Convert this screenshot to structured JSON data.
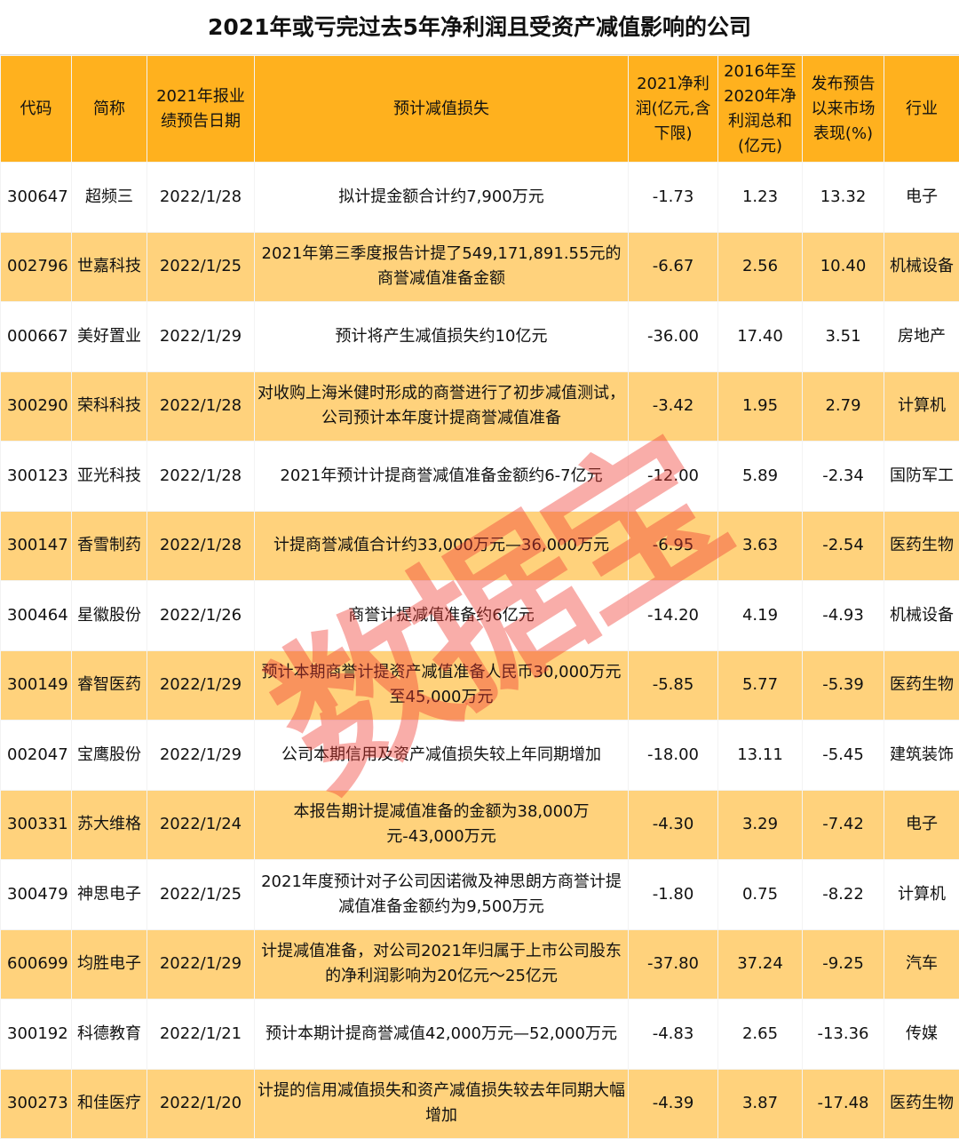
{
  "title": "2021年或亏完过去5年净利润且受资产减值影响的公司",
  "watermark": "数据宝",
  "colors": {
    "header": "#FFB11E",
    "stripe": "#FFD27C",
    "watermark": "#F03C32"
  },
  "columns": [
    "代码",
    "简称",
    "2021年报业绩预告日期",
    "预计减值损失",
    "2021净利润(亿元,含下限)",
    "2016年至2020年净利润总和(亿元)",
    "发布预告以来市场表现(%)",
    "行业"
  ],
  "rows": [
    [
      "300647",
      "超频三",
      "2022/1/28",
      "拟计提金额合计约7,900万元",
      "-1.73",
      "1.23",
      "13.32",
      "电子"
    ],
    [
      "002796",
      "世嘉科技",
      "2022/1/25",
      "2021年第三季度报告计提了549,171,891.55元的商誉减值准备金额",
      "-6.67",
      "2.56",
      "10.40",
      "机械设备"
    ],
    [
      "000667",
      "美好置业",
      "2022/1/29",
      "预计将产生减值损失约10亿元",
      "-36.00",
      "17.40",
      "3.51",
      "房地产"
    ],
    [
      "300290",
      "荣科科技",
      "2022/1/28",
      "对收购上海米健时形成的商誉进行了初步减值测试，公司预计本年度计提商誉减值准备",
      "-3.42",
      "1.95",
      "2.79",
      "计算机"
    ],
    [
      "300123",
      "亚光科技",
      "2022/1/28",
      "2021年预计计提商誉减值准备金额约6-7亿元",
      "-12.00",
      "5.89",
      "-2.34",
      "国防军工"
    ],
    [
      "300147",
      "香雪制药",
      "2022/1/28",
      "计提商誉减值合计约33,000万元—36,000万元",
      "-6.95",
      "3.63",
      "-2.54",
      "医药生物"
    ],
    [
      "300464",
      "星徽股份",
      "2022/1/26",
      "商誉计提减值准备约6亿元",
      "-14.20",
      "4.19",
      "-4.93",
      "机械设备"
    ],
    [
      "300149",
      "睿智医药",
      "2022/1/29",
      "预计本期商誉计提资产减值准备人民币30,000万元至45,000万元",
      "-5.85",
      "5.77",
      "-5.39",
      "医药生物"
    ],
    [
      "002047",
      "宝鹰股份",
      "2022/1/29",
      "公司本期信用及资产减值损失较上年同期增加",
      "-18.00",
      "13.11",
      "-5.45",
      "建筑装饰"
    ],
    [
      "300331",
      "苏大维格",
      "2022/1/24",
      "本报告期计提减值准备的金额为38,000万元-43,000万元",
      "-4.30",
      "3.29",
      "-7.42",
      "电子"
    ],
    [
      "300479",
      "神思电子",
      "2022/1/25",
      "2021年度预计对子公司因诺微及神思朗方商誉计提减值准备金额约为9,500万元",
      "-1.80",
      "0.75",
      "-8.22",
      "计算机"
    ],
    [
      "600699",
      "均胜电子",
      "2022/1/29",
      "计提减值准备，对公司2021年归属于上市公司股东的净利润影响为20亿元～25亿元",
      "-37.80",
      "37.24",
      "-9.25",
      "汽车"
    ],
    [
      "300192",
      "科德教育",
      "2022/1/21",
      "预计本期计提商誉减值42,000万元—52,000万元",
      "-4.83",
      "2.65",
      "-13.36",
      "传媒"
    ],
    [
      "300273",
      "和佳医疗",
      "2022/1/20",
      "计提的信用减值损失和资产减值损失较去年同期大幅增加",
      "-4.39",
      "3.87",
      "-17.48",
      "医药生物"
    ]
  ]
}
